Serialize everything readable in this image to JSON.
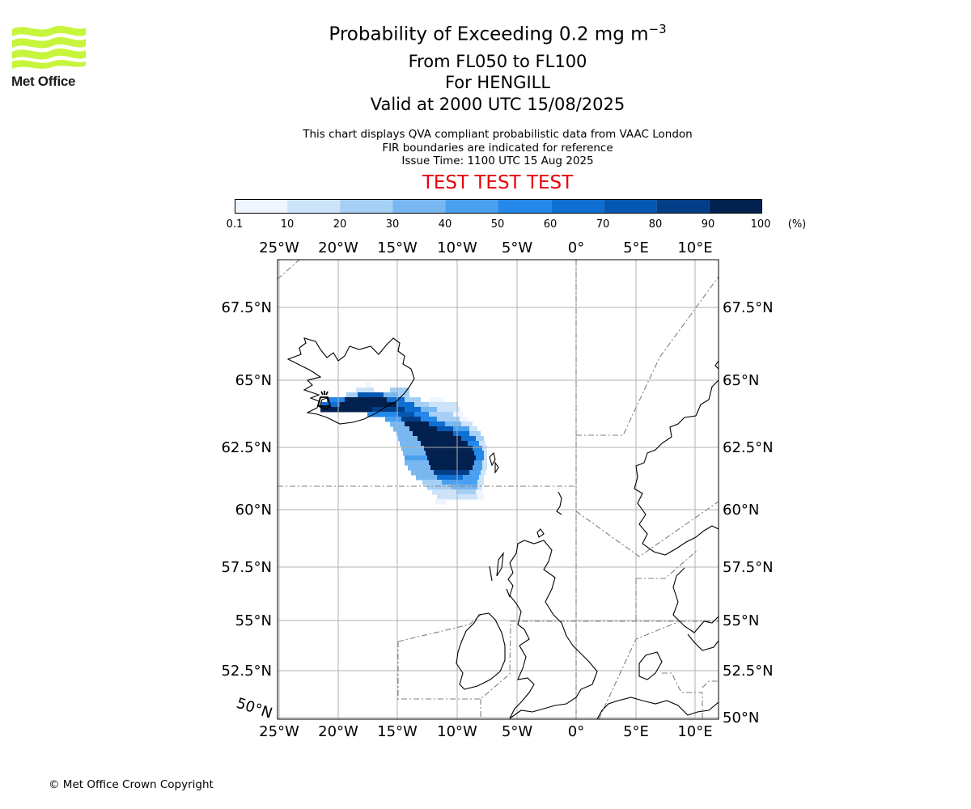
{
  "logo": {
    "text": "Met Office",
    "color": "#c6f53c"
  },
  "header": {
    "title_prefix": "Probability of Exceeding 0.2 mg m",
    "title_exp": "−3",
    "levels": "From FL050 to FL100",
    "location": "For HENGILL",
    "valid": "Valid at 2000 UTC 15/08/2025",
    "note1": "This chart displays QVA compliant probabilistic data from VAAC London",
    "note2": "FIR boundaries are indicated for reference",
    "issue": "Issue Time: 1100 UTC 15 Aug 2025",
    "test": "TEST TEST TEST"
  },
  "colorbar": {
    "ticks": [
      "0.1",
      "10",
      "20",
      "30",
      "40",
      "50",
      "60",
      "70",
      "80",
      "90",
      "100"
    ],
    "unit": "(%)",
    "colors": [
      "#eef5fe",
      "#cde3fa",
      "#a6cff5",
      "#79b7f1",
      "#4aa0ef",
      "#2487ea",
      "#0f6ed2",
      "#0558b2",
      "#033f88",
      "#03214f"
    ]
  },
  "map": {
    "lon_labels": [
      "25°W",
      "20°W",
      "15°W",
      "10°W",
      "5°W",
      "0°",
      "5°E",
      "10°E"
    ],
    "lat_labels": [
      "67.5°N",
      "65°N",
      "62.5°N",
      "60°N",
      "57.5°N",
      "55°N",
      "52.5°N",
      "50°N"
    ],
    "corner_label": "50°N"
  },
  "footer": {
    "copyright": "© Met Office Crown Copyright"
  }
}
